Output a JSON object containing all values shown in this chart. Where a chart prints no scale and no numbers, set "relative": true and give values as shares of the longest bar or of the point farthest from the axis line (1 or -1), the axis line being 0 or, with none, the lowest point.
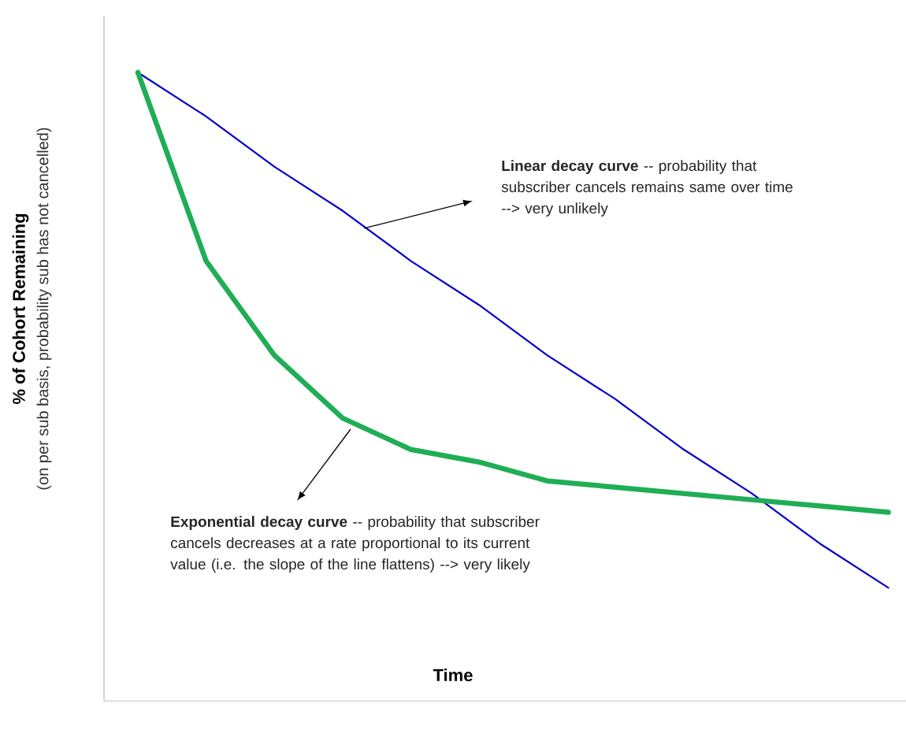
{
  "chart_data": {
    "type": "line",
    "relative": true,
    "xlabel": "Time",
    "ylabel": "% of Cohort Remaining",
    "categories": [
      null,
      null,
      null,
      null,
      null,
      null,
      null,
      null,
      null,
      null,
      null,
      null
    ],
    "series": [
      {
        "color": "#0000cc",
        "values": [
          1,
          0.93,
          0.85,
          0.78,
          0.7,
          0.63,
          0.55,
          0.48,
          0.4,
          0.33,
          0.25,
          0.18
        ]
      },
      {
        "color": "#1fae55",
        "values": [
          1,
          0.7,
          0.55,
          0.45,
          0.4,
          0.38,
          0.35,
          0.34,
          0.33,
          0.32,
          0.31,
          0.3
        ]
      }
    ],
    "annotations": [
      "**Linear decay curve** -- probability that subscriber cancels remains same over time --> very unlikely",
      "**Exponential decay curve** -- probability that subscriber cancels decreases at a rate proportional to its current value (i.e. the slope of the line flattens) --> very likely",
      "(on per sub basis, probability sub has not cancelled)"
    ],
    "marker": "none",
    "line_style": "solid"
  }
}
